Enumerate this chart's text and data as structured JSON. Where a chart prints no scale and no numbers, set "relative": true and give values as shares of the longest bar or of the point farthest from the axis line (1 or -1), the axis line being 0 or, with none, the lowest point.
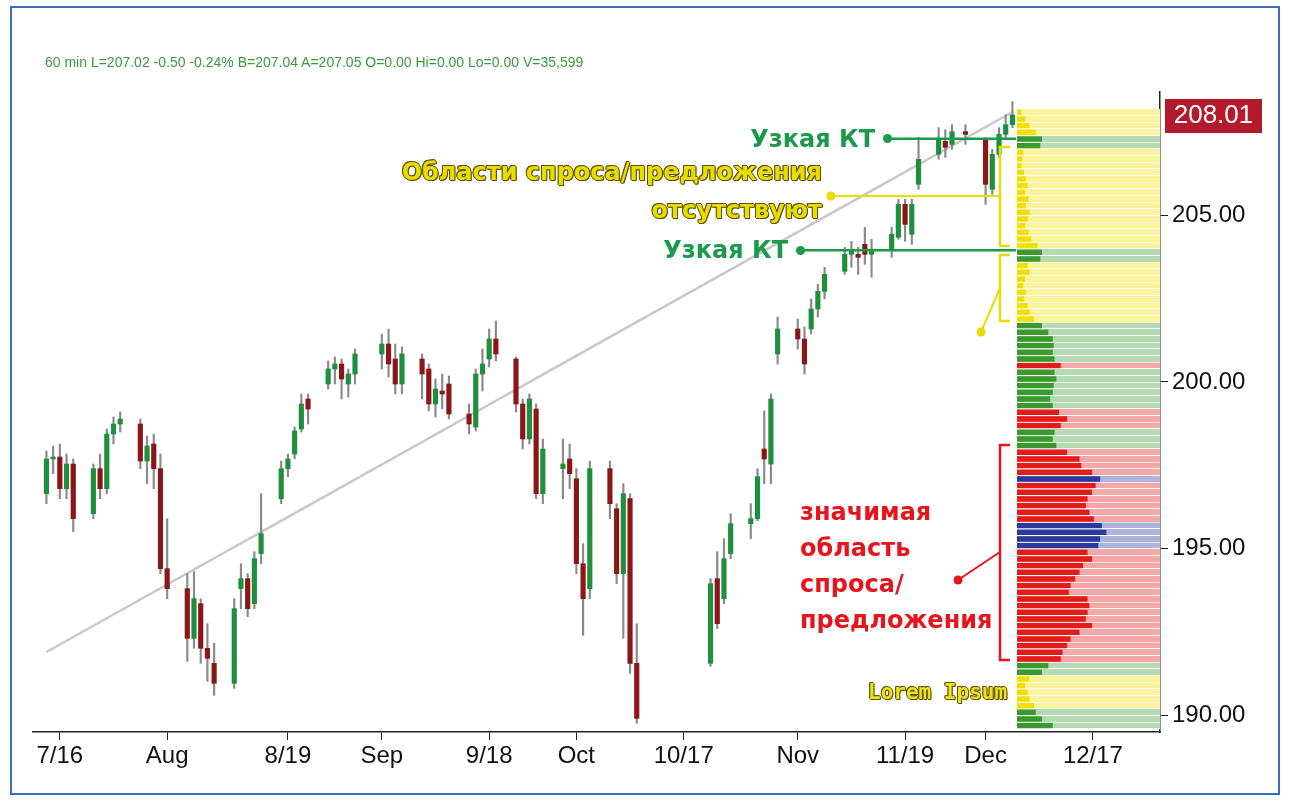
{
  "chart_data": [
    {
      "type": "candlestick",
      "title": "60 min L=207.02 -0.50 -0.24% B=207.04 A=207.05 O=0.00 Hi=0.00 Lo=0.00 V=35,599",
      "x": [
        "--07-14",
        "--07-15",
        "--07-16",
        "--07-17",
        "--07-18",
        "--07-21",
        "--07-22",
        "--07-23",
        "--07-24",
        "--07-25",
        "--07-28",
        "--07-29",
        "--07-30",
        "--07-31",
        "--08-01",
        "--08-04",
        "--08-05",
        "--08-06",
        "--08-07",
        "--08-08",
        "--08-11",
        "--08-12",
        "--08-13",
        "--08-14",
        "--08-15",
        "--08-18",
        "--08-19",
        "--08-20",
        "--08-21",
        "--08-22",
        "--08-25",
        "--08-26",
        "--08-27",
        "--08-28",
        "--08-29",
        "--09-02",
        "--09-03",
        "--09-04",
        "--09-05",
        "--09-08",
        "--09-09",
        "--09-10",
        "--09-11",
        "--09-12",
        "--09-15",
        "--09-16",
        "--09-17",
        "--09-18",
        "--09-19",
        "--09-22",
        "--09-23",
        "--09-24",
        "--09-25",
        "--09-26",
        "--09-29",
        "--09-30",
        "--10-01",
        "--10-02",
        "--10-03",
        "--10-06",
        "--10-07",
        "--10-08",
        "--10-09",
        "--10-10",
        "--10-21",
        "--10-22",
        "--10-23",
        "--10-24",
        "--10-27",
        "--10-28",
        "--10-29",
        "--10-30",
        "--10-31",
        "--11-03",
        "--11-04",
        "--11-05",
        "--11-06",
        "--11-07",
        "--11-10",
        "--11-11",
        "--11-12",
        "--11-13",
        "--11-14",
        "--11-17",
        "--11-18",
        "--11-19",
        "--11-20",
        "--11-21",
        "--11-24",
        "--11-25",
        "--11-26",
        "--11-28",
        "--12-01",
        "--12-02",
        "--12-03",
        "--12-04",
        "--12-05"
      ],
      "ohlc": [
        [
          196.65,
          197.93,
          196.35,
          197.69
        ],
        [
          197.69,
          198.08,
          197.25,
          197.75
        ],
        [
          197.75,
          198.14,
          196.5,
          196.8
        ],
        [
          196.8,
          197.84,
          196.5,
          197.54
        ],
        [
          197.54,
          197.69,
          195.51,
          195.9
        ],
        [
          196.05,
          197.54,
          195.9,
          197.4
        ],
        [
          197.4,
          197.84,
          196.5,
          196.8
        ],
        [
          196.8,
          198.59,
          196.65,
          198.44
        ],
        [
          198.44,
          198.95,
          198.14,
          198.74
        ],
        [
          198.74,
          199.1,
          198.5,
          198.89
        ],
        [
          198.74,
          198.89,
          197.4,
          197.63
        ],
        [
          197.63,
          198.38,
          196.95,
          198.08
        ],
        [
          198.14,
          198.44,
          196.8,
          197.4
        ],
        [
          197.4,
          197.84,
          194.25,
          194.4
        ],
        [
          194.4,
          195.9,
          193.5,
          193.8
        ],
        [
          193.8,
          194.25,
          191.62,
          192.31
        ],
        [
          192.31,
          194.31,
          192.01,
          193.5
        ],
        [
          193.35,
          193.5,
          191.56,
          192.01
        ],
        [
          192.01,
          192.75,
          191.02,
          191.71
        ],
        [
          191.56,
          192.16,
          190.6,
          190.96
        ],
        [
          190.96,
          193.5,
          190.81,
          193.2
        ],
        [
          193.8,
          194.55,
          193.2,
          194.1
        ],
        [
          194.1,
          194.25,
          192.96,
          193.2
        ],
        [
          193.35,
          194.91,
          193.2,
          194.7
        ],
        [
          194.85,
          196.65,
          194.55,
          195.45
        ],
        [
          196.5,
          197.63,
          196.35,
          197.4
        ],
        [
          197.4,
          197.84,
          197.16,
          197.69
        ],
        [
          197.84,
          198.65,
          197.69,
          198.53
        ],
        [
          198.59,
          199.64,
          198.5,
          199.34
        ],
        [
          199.49,
          199.64,
          198.74,
          199.19
        ],
        [
          199.94,
          200.63,
          199.79,
          200.39
        ],
        [
          200.39,
          200.75,
          199.94,
          200.54
        ],
        [
          200.54,
          200.69,
          199.49,
          200.09
        ],
        [
          199.94,
          200.39,
          199.55,
          200.24
        ],
        [
          200.24,
          200.99,
          199.94,
          200.84
        ],
        [
          200.84,
          201.44,
          200.39,
          201.14
        ],
        [
          201.14,
          201.59,
          200.15,
          200.54
        ],
        [
          200.69,
          201.14,
          199.64,
          199.94
        ],
        [
          199.94,
          201.05,
          199.64,
          200.84
        ],
        [
          200.69,
          200.84,
          199.49,
          200.24
        ],
        [
          200.39,
          200.54,
          199.13,
          199.34
        ],
        [
          199.34,
          200.09,
          198.95,
          199.79
        ],
        [
          199.73,
          200.24,
          199.19,
          199.64
        ],
        [
          199.94,
          200.18,
          198.89,
          199.04
        ],
        [
          199.04,
          199.34,
          198.44,
          198.74
        ],
        [
          198.65,
          200.39,
          198.53,
          200.24
        ],
        [
          200.24,
          200.99,
          199.73,
          200.54
        ],
        [
          200.69,
          201.59,
          200.45,
          201.29
        ],
        [
          201.29,
          201.83,
          200.63,
          200.84
        ],
        [
          200.69,
          200.75,
          199.1,
          199.34
        ],
        [
          199.34,
          199.49,
          197.99,
          198.29
        ],
        [
          198.29,
          199.64,
          198.14,
          199.49
        ],
        [
          199.19,
          199.34,
          196.5,
          196.65
        ],
        [
          196.65,
          198.29,
          196.35,
          197.99
        ],
        [
          197.4,
          198.29,
          196.5,
          197.54
        ],
        [
          197.69,
          198.14,
          196.8,
          197.25
        ],
        [
          197.1,
          197.4,
          194.25,
          194.55
        ],
        [
          194.55,
          195.15,
          192.4,
          193.5
        ],
        [
          193.8,
          197.63,
          193.5,
          197.4
        ],
        [
          197.4,
          197.63,
          195.9,
          196.35
        ],
        [
          196.2,
          196.35,
          193.95,
          194.25
        ],
        [
          194.25,
          196.95,
          192.31,
          196.65
        ],
        [
          196.5,
          196.65,
          191.26,
          191.56
        ],
        [
          191.56,
          192.75,
          189.76,
          189.91
        ],
        [
          191.56,
          194.1,
          191.47,
          193.95
        ],
        [
          194.1,
          194.91,
          192.6,
          192.75
        ],
        [
          193.5,
          195.3,
          193.35,
          194.7
        ],
        [
          194.85,
          196.05,
          194.7,
          195.75
        ],
        [
          195.75,
          196.35,
          195.3,
          195.9
        ],
        [
          195.9,
          197.4,
          195.84,
          197.16
        ],
        [
          197.99,
          199.13,
          196.95,
          197.69
        ],
        [
          197.54,
          199.64,
          196.95,
          199.49
        ],
        [
          200.84,
          201.95,
          200.54,
          201.59
        ],
        [
          201.59,
          201.89,
          200.99,
          201.29
        ],
        [
          201.29,
          201.65,
          200.24,
          200.54
        ],
        [
          201.59,
          202.49,
          201.44,
          202.19
        ],
        [
          202.19,
          202.93,
          201.95,
          202.72
        ],
        [
          202.72,
          203.44,
          202.49,
          203.23
        ],
        [
          203.32,
          204.04,
          203.23,
          203.83
        ],
        [
          203.83,
          204.22,
          203.44,
          203.98
        ],
        [
          203.83,
          204.04,
          203.23,
          203.74
        ],
        [
          204.13,
          204.64,
          203.53,
          203.83
        ],
        [
          203.83,
          204.28,
          203.14,
          203.98
        ],
        [
          203.98,
          204.64,
          203.74,
          204.43
        ],
        [
          204.34,
          205.48,
          204.28,
          205.33
        ],
        [
          205.33,
          205.48,
          204.22,
          204.73
        ],
        [
          204.43,
          205.48,
          204.13,
          205.33
        ],
        [
          205.93,
          207.34,
          205.78,
          206.68
        ],
        [
          206.83,
          207.63,
          206.68,
          207.28
        ],
        [
          207.22,
          207.57,
          206.74,
          207.04
        ],
        [
          207.13,
          207.72,
          206.98,
          207.51
        ],
        [
          207.51,
          207.72,
          207.13,
          207.43
        ],
        [
          207.28,
          207.34,
          205.33,
          205.93
        ],
        [
          205.78,
          206.98,
          205.63,
          206.83
        ],
        [
          206.83,
          207.63,
          206.74,
          207.43
        ],
        [
          207.43,
          208.02,
          207.28,
          207.72
        ],
        [
          207.72,
          208.41,
          207.63,
          208.01
        ]
      ],
      "colors": [
        "#1e8f3c",
        "#1e8f3c",
        "#8c1518",
        "#1e8f3c",
        "#8c1518",
        "#1e8f3c",
        "#8c1518",
        "#1e8f3c",
        "#1e8f3c",
        "#1e8f3c",
        "#8c1518",
        "#1e8f3c",
        "#8c1518",
        "#8c1518",
        "#8c1518",
        "#8c1518",
        "#1e8f3c",
        "#8c1518",
        "#8c1518",
        "#8c1518",
        "#1e8f3c",
        "#1e8f3c",
        "#8c1518",
        "#1e8f3c",
        "#1e8f3c",
        "#1e8f3c",
        "#1e8f3c",
        "#1e8f3c",
        "#1e8f3c",
        "#8c1518",
        "#1e8f3c",
        "#1e8f3c",
        "#8c1518",
        "#1e8f3c",
        "#1e8f3c",
        "#1e8f3c",
        "#8c1518",
        "#8c1518",
        "#1e8f3c",
        "#8c1518",
        "#8c1518",
        "#1e8f3c",
        "#8c1518",
        "#8c1518",
        "#8c1518",
        "#1e8f3c",
        "#1e8f3c",
        "#1e8f3c",
        "#8c1518",
        "#8c1518",
        "#8c1518",
        "#1e8f3c",
        "#8c1518",
        "#1e8f3c",
        "#1e8f3c",
        "#8c1518",
        "#8c1518",
        "#8c1518",
        "#1e8f3c",
        "#8c1518",
        "#8c1518",
        "#1e8f3c",
        "#8c1518",
        "#8c1518",
        "#1e8f3c",
        "#8c1518",
        "#1e8f3c",
        "#1e8f3c",
        "#1e8f3c",
        "#1e8f3c",
        "#8c1518",
        "#1e8f3c",
        "#1e8f3c",
        "#8c1518",
        "#8c1518",
        "#1e8f3c",
        "#1e8f3c",
        "#1e8f3c",
        "#1e8f3c",
        "#1e8f3c",
        "#8c1518",
        "#8c1518",
        "#1e8f3c",
        "#1e8f3c",
        "#1e8f3c",
        "#8c1518",
        "#1e8f3c",
        "#1e8f3c",
        "#1e8f3c",
        "#8c1518",
        "#1e8f3c",
        "#8c1518",
        "#8c1518",
        "#1e8f3c",
        "#1e8f3c",
        "#1e8f3c",
        "#1e8f3c"
      ],
      "series": [
        {
          "type": "line",
          "x": [
            "--07-14",
            "--12-05"
          ],
          "values": [
            191.9,
            208.1
          ],
          "color": "#c8c8c8"
        }
      ],
      "xlim": [
        "--07-12",
        "--12-27"
      ],
      "xticks": [
        {
          "value": "--07-16",
          "label": "7/16"
        },
        {
          "value": "--08-01",
          "label": "Aug"
        },
        {
          "value": "--08-19",
          "label": "8/19"
        },
        {
          "value": "--09-02",
          "label": "Sep"
        },
        {
          "value": "--09-18",
          "label": "9/18"
        },
        {
          "value": "--10-01",
          "label": "Oct"
        },
        {
          "value": "--10-17",
          "label": "10/17"
        },
        {
          "value": "--11-03",
          "label": "Nov"
        },
        {
          "value": "--11-19",
          "label": "11/19"
        },
        {
          "value": "--12-01",
          "label": "Dec"
        },
        {
          "value": "--12-17",
          "label": "12/17"
        }
      ],
      "ylim": [
        189.5,
        208.7
      ],
      "yticks": [
        {
          "value": 190,
          "label": "190.00"
        },
        {
          "value": 195,
          "label": "195.00"
        },
        {
          "value": 200,
          "label": "200.00"
        },
        {
          "value": 205,
          "label": "205.00"
        }
      ],
      "ref_lines": [
        {
          "axis": "y",
          "value": 207.3,
          "label": "Узкая КТ",
          "color": "#1a9a4a"
        },
        {
          "axis": "y",
          "value": 203.95,
          "label": "Узкая КТ",
          "color": "#1a9a4a"
        }
      ],
      "annotations": [
        "Области спроса/предложения отсутствуют",
        "значимая область спроса/предложения",
        "Lorem Ipsum",
        "208.01"
      ]
    },
    {
      "type": "bar",
      "orientation": "horizontal",
      "relative": true,
      "categories": [
        null,
        null,
        null,
        null,
        null,
        null,
        null,
        null,
        null,
        null,
        null,
        null,
        null,
        null,
        null,
        null,
        null,
        null,
        null,
        null,
        null,
        null,
        null,
        null,
        null,
        null,
        null,
        null,
        null,
        null,
        null,
        null,
        null,
        null,
        null,
        null,
        null,
        null,
        null,
        null,
        null,
        null,
        null,
        null,
        null,
        null,
        null,
        null,
        null,
        null,
        null,
        null,
        null,
        null,
        null,
        null,
        null,
        null,
        null,
        null,
        null,
        null,
        null,
        null,
        null,
        null,
        null,
        null,
        null,
        null,
        null,
        null,
        null,
        null,
        null,
        null,
        null,
        null,
        null,
        null,
        null,
        null,
        null,
        null,
        null,
        null,
        null,
        null,
        null,
        null,
        null,
        null,
        null
      ],
      "values": [
        0.05,
        0.09,
        0.14,
        0.21,
        0.28,
        0.26,
        0.07,
        0.06,
        0.05,
        0.08,
        0.1,
        0.12,
        0.09,
        0.13,
        0.1,
        0.14,
        0.12,
        0.09,
        0.13,
        0.16,
        0.23,
        0.28,
        0.26,
        0.12,
        0.14,
        0.09,
        0.07,
        0.1,
        0.08,
        0.12,
        0.14,
        0.19,
        0.28,
        0.35,
        0.4,
        0.41,
        0.4,
        0.42,
        0.49,
        0.42,
        0.44,
        0.41,
        0.4,
        0.37,
        0.4,
        0.47,
        0.56,
        0.49,
        0.42,
        0.4,
        0.44,
        0.56,
        0.7,
        0.72,
        0.84,
        0.93,
        0.88,
        0.84,
        0.79,
        0.77,
        0.81,
        0.86,
        0.95,
        1,
        0.93,
        0.91,
        0.79,
        0.84,
        0.74,
        0.7,
        0.65,
        0.6,
        0.58,
        0.79,
        0.81,
        0.79,
        0.77,
        0.84,
        0.7,
        0.6,
        0.56,
        0.51,
        0.49,
        0.35,
        0.28,
        0.14,
        0.09,
        0.12,
        0.14,
        0.19,
        0.21,
        0.28,
        0.4
      ],
      "colors": [
        "#f0e000",
        "#f0e000",
        "#f0e000",
        "#f0e000",
        "#3b9a2f",
        "#3b9a2f",
        "#f0e000",
        "#f0e000",
        "#f0e000",
        "#f0e000",
        "#f0e000",
        "#f0e000",
        "#f0e000",
        "#f0e000",
        "#f0e000",
        "#f0e000",
        "#f0e000",
        "#f0e000",
        "#f0e000",
        "#f0e000",
        "#f0e000",
        "#3b9a2f",
        "#3b9a2f",
        "#f0e000",
        "#f0e000",
        "#f0e000",
        "#f0e000",
        "#f0e000",
        "#f0e000",
        "#f0e000",
        "#f0e000",
        "#f0e000",
        "#3b9a2f",
        "#3b9a2f",
        "#3b9a2f",
        "#3b9a2f",
        "#3b9a2f",
        "#3b9a2f",
        "#e31b1b",
        "#3b9a2f",
        "#3b9a2f",
        "#3b9a2f",
        "#3b9a2f",
        "#3b9a2f",
        "#3b9a2f",
        "#e31b1b",
        "#e31b1b",
        "#e31b1b",
        "#3b9a2f",
        "#3b9a2f",
        "#3b9a2f",
        "#e31b1b",
        "#e31b1b",
        "#e31b1b",
        "#e31b1b",
        "#2b3a9c",
        "#e31b1b",
        "#e31b1b",
        "#e31b1b",
        "#e31b1b",
        "#e31b1b",
        "#e31b1b",
        "#2b3a9c",
        "#2b3a9c",
        "#2b3a9c",
        "#2b3a9c",
        "#e31b1b",
        "#e31b1b",
        "#e31b1b",
        "#e31b1b",
        "#e31b1b",
        "#e31b1b",
        "#e31b1b",
        "#e31b1b",
        "#e31b1b",
        "#e31b1b",
        "#e31b1b",
        "#e31b1b",
        "#e31b1b",
        "#e31b1b",
        "#e31b1b",
        "#e31b1b",
        "#e31b1b",
        "#3b9a2f",
        "#3b9a2f",
        "#f0e000",
        "#f0e000",
        "#f0e000",
        "#f0e000",
        "#f0e000",
        "#3b9a2f",
        "#3b9a2f",
        "#3b9a2f"
      ]
    }
  ]
}
